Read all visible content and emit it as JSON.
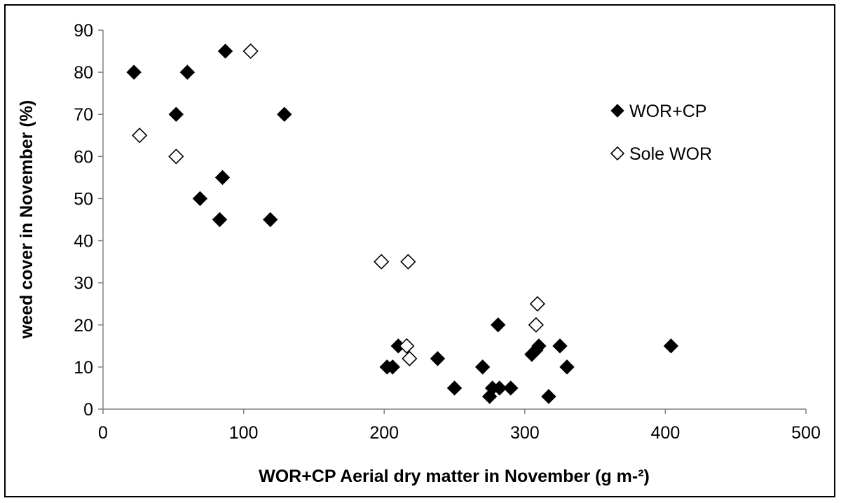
{
  "chart_data": {
    "type": "scatter",
    "title": "",
    "xlabel": "WOR+CP Aerial dry matter in November (g m-²)",
    "ylabel": "weed cover in November (%)",
    "xlim": [
      0,
      500
    ],
    "ylim": [
      0,
      90
    ],
    "x_ticks": [
      "0",
      "100",
      "200",
      "300",
      "400",
      "500"
    ],
    "y_ticks": [
      "0",
      "10",
      "20",
      "30",
      "40",
      "50",
      "60",
      "70",
      "80",
      "90"
    ],
    "grid": false,
    "legend_position": "right",
    "series": [
      {
        "name": "WOR+CP",
        "marker": "filled-diamond",
        "color": "#000000",
        "points": [
          [
            22,
            80
          ],
          [
            60,
            80
          ],
          [
            87,
            85
          ],
          [
            52,
            70
          ],
          [
            129,
            70
          ],
          [
            85,
            55
          ],
          [
            69,
            50
          ],
          [
            83,
            45
          ],
          [
            119,
            45
          ],
          [
            210,
            15
          ],
          [
            202,
            10
          ],
          [
            206,
            10
          ],
          [
            238,
            12
          ],
          [
            250,
            5
          ],
          [
            270,
            10
          ],
          [
            275,
            3
          ],
          [
            277,
            5
          ],
          [
            282,
            5
          ],
          [
            290,
            5
          ],
          [
            281,
            20
          ],
          [
            305,
            13
          ],
          [
            308,
            14
          ],
          [
            310,
            15
          ],
          [
            317,
            3
          ],
          [
            325,
            15
          ],
          [
            330,
            10
          ],
          [
            404,
            15
          ]
        ]
      },
      {
        "name": "Sole WOR",
        "marker": "open-diamond",
        "color": "#000000",
        "points": [
          [
            26,
            65
          ],
          [
            52,
            60
          ],
          [
            105,
            85
          ],
          [
            198,
            35
          ],
          [
            217,
            35
          ],
          [
            216,
            15
          ],
          [
            218,
            12
          ],
          [
            309,
            25
          ],
          [
            308,
            20
          ]
        ]
      }
    ]
  }
}
